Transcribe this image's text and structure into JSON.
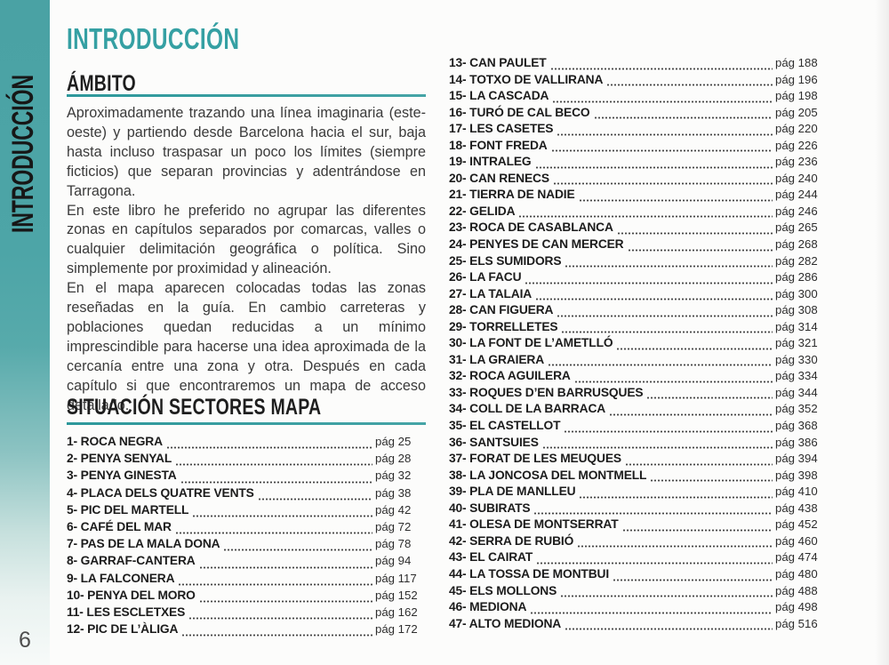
{
  "page": {
    "number": "6",
    "title": "INTRODUCCIÓN",
    "sidebar_label": "INTRODUCCIÓN",
    "accent_color": "#35a0a3",
    "sidebar_color": "#4da5a7"
  },
  "ambito": {
    "heading": "ÁMBITO",
    "paragraphs": [
      "Aproximadamente trazando una línea imaginaria (este-oeste) y partiendo desde Barcelona hacia el sur, baja hasta incluso traspasar un poco los límites (siempre ficticios) que separan provincias y adentrándose en Tarragona.",
      "En este libro he preferido no agrupar las diferentes zonas en capítulos separados por comarcas, valles o cualquier delimitación geográfica o política. Sino simplemente por proximidad y alineación.",
      "En el mapa aparecen colocadas todas las zonas reseñadas en la guía. En cambio carreteras y poblaciones quedan reducidas a un mínimo imprescindible para hacerse una idea aproximada de la cercanía entre una zona y otra. Después en cada capítulo si que encontraremos un mapa de acceso detallado."
    ]
  },
  "sectors": {
    "heading": "SITUACIÓN SECTORES MAPA",
    "left_items": [
      {
        "label": "1- ROCA NEGRA",
        "page": "pág 25"
      },
      {
        "label": "2- PENYA SENYAL",
        "page": "pág 28"
      },
      {
        "label": "3- PENYA GINESTA",
        "page": "pág 32"
      },
      {
        "label": "4- PLACA DELS QUATRE VENTS",
        "page": "pág 38"
      },
      {
        "label": "5- PIC DEL MARTELL",
        "page": "pág 42"
      },
      {
        "label": "6- CAFÉ DEL MAR",
        "page": "pág 72"
      },
      {
        "label": "7- PAS DE LA MALA DONA",
        "page": "pág 78"
      },
      {
        "label": "8- GARRAF-CANTERA",
        "page": "pág 94"
      },
      {
        "label": "9- LA FALCONERA",
        "page": "pág 117"
      },
      {
        "label": "10- PENYA DEL MORO",
        "page": "pág 152"
      },
      {
        "label": "11- LES ESCLETXES",
        "page": "pág 162"
      },
      {
        "label": "12- PIC DE L’ÀLIGA",
        "page": "pág 172"
      }
    ],
    "right_items": [
      {
        "label": "13- CAN PAULET",
        "page": "pág 188"
      },
      {
        "label": "14- TOTXO DE VALLIRANA",
        "page": "pág 196"
      },
      {
        "label": "15- LA CASCADA",
        "page": "pág 198"
      },
      {
        "label": "16- TURÓ DE CAL BECO",
        "page": "pág 205"
      },
      {
        "label": "17- LES CASETES",
        "page": "pág 220"
      },
      {
        "label": "18- FONT FREDA",
        "page": "pág 226"
      },
      {
        "label": "19- INTRALEG",
        "page": "pág 236"
      },
      {
        "label": "20- CAN RENECS",
        "page": "pág 240"
      },
      {
        "label": "21- TIERRA DE NADIE",
        "page": "pág 244"
      },
      {
        "label": "22- GELIDA",
        "page": "pág 246"
      },
      {
        "label": "23- ROCA DE CASABLANCA",
        "page": "pág 265"
      },
      {
        "label": "24- PENYES DE CAN MERCER",
        "page": "pág 268"
      },
      {
        "label": "25- ELS SUMIDORS",
        "page": "pág 282"
      },
      {
        "label": "26- LA FACU",
        "page": "pág 286"
      },
      {
        "label": "27- LA TALAIA",
        "page": "pág 300"
      },
      {
        "label": "28- CAN FIGUERA",
        "page": "pág 308"
      },
      {
        "label": "29- TORRELLETES",
        "page": "pág 314"
      },
      {
        "label": "30- LA FONT DE L’AMETLLÓ",
        "page": "pág 321"
      },
      {
        "label": "31- LA GRAIERA",
        "page": "pág 330"
      },
      {
        "label": "32- ROCA AGUILERA",
        "page": "pág 334"
      },
      {
        "label": "33- ROQUES D’EN BARRUSQUES",
        "page": "pág 344"
      },
      {
        "label": "34- COLL DE LA BARRACA",
        "page": "pág 352"
      },
      {
        "label": "35- EL CASTELLOT",
        "page": "pág 368"
      },
      {
        "label": "36- SANTSUIES",
        "page": "pág 386"
      },
      {
        "label": "37- FORAT DE LES MEUQUES",
        "page": "pág 394"
      },
      {
        "label": "38- LA JONCOSA DEL MONTMELL",
        "page": "pág 398"
      },
      {
        "label": "39- PLA DE MANLLEU",
        "page": "pág 410"
      },
      {
        "label": "40- SUBIRATS",
        "page": "pág 438"
      },
      {
        "label": "41- OLESA DE MONTSERRAT",
        "page": "pág 452"
      },
      {
        "label": "42- SERRA DE RUBIÓ",
        "page": "pág 460"
      },
      {
        "label": "43- EL CAIRAT",
        "page": "pág 474"
      },
      {
        "label": "44- LA TOSSA DE MONTBUI",
        "page": "pág 480"
      },
      {
        "label": "45- ELS MOLLONS",
        "page": "pág 488"
      },
      {
        "label": "46- MEDIONA",
        "page": "pág 498"
      },
      {
        "label": "47- ALTO MEDIONA",
        "page": "pág 516"
      }
    ]
  }
}
